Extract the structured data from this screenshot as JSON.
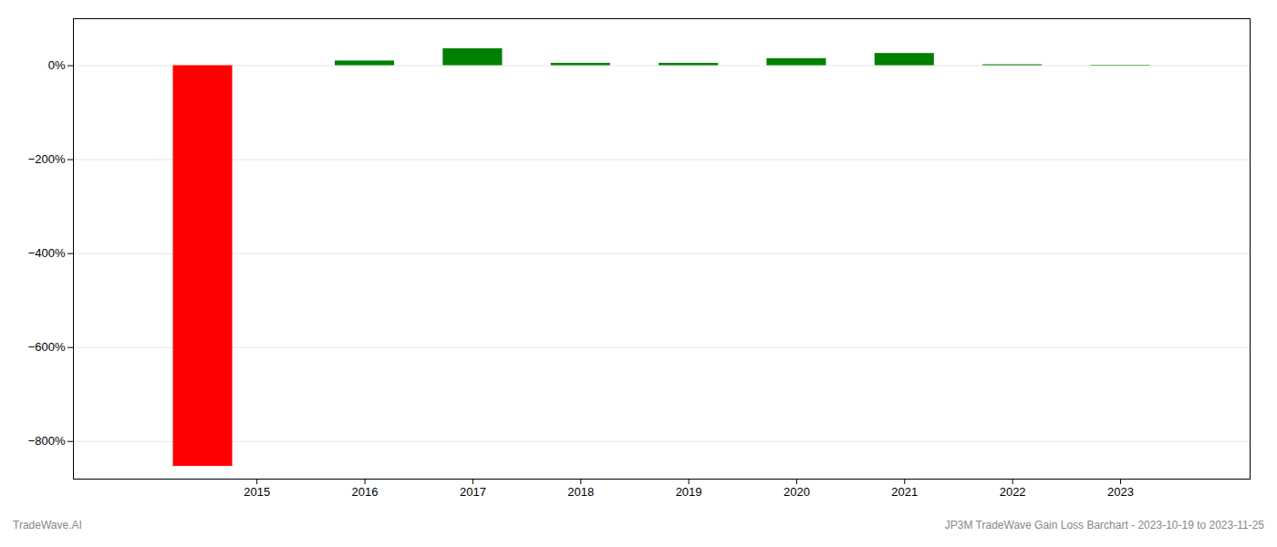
{
  "chart_data": {
    "type": "bar",
    "x": [
      2014.5,
      2016.0,
      2017.0,
      2018.0,
      2019.0,
      2020.0,
      2021.0,
      2022.0,
      2023.0
    ],
    "values": [
      -853,
      10,
      36,
      5,
      5,
      15,
      26,
      2,
      1
    ],
    "colors": [
      "#ff0000",
      "#008000",
      "#008000",
      "#008000",
      "#008000",
      "#008000",
      "#008000",
      "#008000",
      "#008000"
    ],
    "xlim": [
      2013.3,
      2024.2
    ],
    "xticks": [
      2015,
      2016,
      2017,
      2018,
      2019,
      2020,
      2021,
      2022,
      2023
    ],
    "ylim": [
      -880,
      100
    ],
    "yticks": [
      {
        "value": 0,
        "label": "0%"
      },
      {
        "value": -200,
        "label": "−200%"
      },
      {
        "value": -400,
        "label": "−400%"
      },
      {
        "value": -600,
        "label": "−600%"
      },
      {
        "value": -800,
        "label": "−800%"
      }
    ],
    "grid": "y",
    "annotations": [
      "TradeWave.AI",
      "JP3M TradeWave Gain Loss Barchart - 2023-10-19 to 2023-11-25"
    ]
  }
}
